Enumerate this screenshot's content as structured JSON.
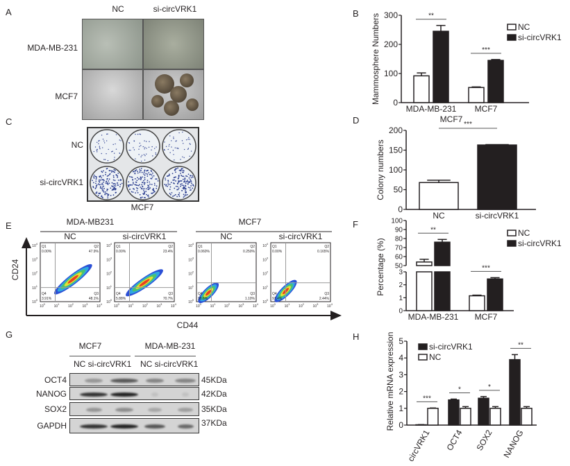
{
  "figure": {
    "panel_labels": [
      "A",
      "B",
      "C",
      "D",
      "E",
      "F",
      "G",
      "H"
    ],
    "panel_a": {
      "columns": [
        "NC",
        "si-circVRK1"
      ],
      "rows": [
        "MDA-MB-231",
        "MCF7"
      ]
    },
    "panel_c": {
      "rows": [
        "NC",
        "si-circVRK1"
      ],
      "caption": "MCF7"
    },
    "panel_e": {
      "groups": [
        "MDA-MB231",
        "MCF7"
      ],
      "y_axis": "CD24",
      "x_axis": "CD44",
      "tick_base": "10",
      "tick_exponents": [
        "0",
        "1",
        "2",
        "3",
        "4"
      ],
      "plots": [
        {
          "title": "NC",
          "q1": "Q1",
          "q1_val": "0.00%",
          "q2": "Q2",
          "q2_val": "47.9%",
          "q3": "Q3",
          "q3_val": "48.1%",
          "q4": "Q4",
          "q4_val": "3.91%"
        },
        {
          "title": "si-circVRK1",
          "q1": "Q1",
          "q1_val": "0.00%",
          "q2": "Q2",
          "q2_val": "23.4%",
          "q3": "Q3",
          "q3_val": "70.7%",
          "q4": "Q4",
          "q4_val": "5.88%"
        },
        {
          "title": "NC",
          "q1": "Q1",
          "q1_val": "0.060%",
          "q2": "Q2",
          "q2_val": "0.250%",
          "q3": "Q3",
          "q3_val": "1.10%",
          "q4": "Q4",
          "q4_val": "98.6%"
        },
        {
          "title": "si-circVRK1",
          "q1": "Q1",
          "q1_val": "0.00%",
          "q2": "Q2",
          "q2_val": "0.165%",
          "q3": "Q3",
          "q3_val": "2.44%",
          "q4": "Q4",
          "q4_val": "97.4%"
        }
      ]
    },
    "panel_g": {
      "groups": [
        "MCF7",
        "MDA-MB-231"
      ],
      "lanes": [
        "NC si-circVRK1",
        "NC si-circVRK1"
      ],
      "proteins": [
        {
          "name": "OCT4",
          "size": "45KDa"
        },
        {
          "name": "NANOG",
          "size": "42KDa"
        },
        {
          "name": "SOX2",
          "size": "35KDa"
        },
        {
          "name": "GAPDH",
          "size": "37KDa"
        }
      ]
    },
    "colors": {
      "nc": "#ffffff",
      "si": "#231f20",
      "axis": "#231f20"
    }
  },
  "chart_data": [
    {
      "panel": "B",
      "type": "bar",
      "title": "",
      "xlabel": "",
      "ylabel": "Mammosphere Numbers",
      "ylim": [
        0,
        300
      ],
      "yticks": [
        0,
        100,
        200,
        300
      ],
      "categories": [
        "MDA-MB-231",
        "MCF7"
      ],
      "series": [
        {
          "name": "NC",
          "values": [
            92,
            52
          ],
          "errors": [
            10,
            2
          ]
        },
        {
          "name": "si-circVRK1",
          "values": [
            245,
            145
          ],
          "errors": [
            20,
            3
          ]
        }
      ],
      "significance": [
        "**",
        "***"
      ],
      "legend": "top-right"
    },
    {
      "panel": "D",
      "type": "bar",
      "title": "MCF7",
      "xlabel": "",
      "ylabel": "Colony numbers",
      "ylim": [
        0,
        200
      ],
      "yticks": [
        0,
        50,
        100,
        150,
        200
      ],
      "categories": [
        "NC",
        "si-circVRK1"
      ],
      "values": [
        68,
        163
      ],
      "errors": [
        6,
        1
      ],
      "significance": [
        "***"
      ]
    },
    {
      "panel": "F",
      "type": "bar",
      "title": "",
      "xlabel": "",
      "ylabel": "Percentage (%)",
      "ylim": [
        0,
        100
      ],
      "axis_break": [
        3,
        50
      ],
      "yticks_upper": [
        50,
        60,
        70,
        80,
        90,
        100
      ],
      "yticks_lower": [
        0,
        1,
        2,
        3
      ],
      "categories": [
        "MDA-MB-231",
        "MCF7"
      ],
      "series": [
        {
          "name": "NC",
          "values": [
            54,
            1.15
          ],
          "errors": [
            3,
            0.05
          ]
        },
        {
          "name": "si-circVRK1",
          "values": [
            76,
            2.45
          ],
          "errors": [
            3,
            0.1
          ]
        }
      ],
      "significance": [
        "**",
        "***"
      ],
      "legend": "top-right"
    },
    {
      "panel": "H",
      "type": "bar",
      "title": "",
      "xlabel": "",
      "ylabel": "Relative mRNA expression",
      "ylim": [
        0,
        5
      ],
      "yticks": [
        0,
        1,
        2,
        3,
        4,
        5
      ],
      "categories": [
        "circVRK1",
        "OCT4",
        "SOX2",
        "NANOG"
      ],
      "series": [
        {
          "name": "si-circVRK1",
          "values": [
            0.02,
            1.5,
            1.6,
            3.9
          ],
          "errors": [
            0.01,
            0.05,
            0.1,
            0.3
          ]
        },
        {
          "name": "NC",
          "values": [
            1.0,
            1.0,
            1.0,
            1.0
          ],
          "errors": [
            0.02,
            0.1,
            0.1,
            0.1
          ]
        }
      ],
      "significance": [
        "***",
        "*",
        "*",
        "**"
      ],
      "legend": "top-left"
    }
  ]
}
